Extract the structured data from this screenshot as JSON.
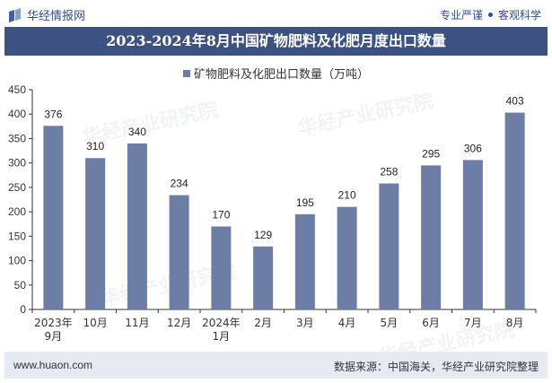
{
  "header": {
    "brand": "华经情报网",
    "tagline_left": "专业严谨",
    "tagline_right": "客观科学"
  },
  "title": "2023-2024年8月中国矿物肥料及化肥月度出口数量",
  "footer": {
    "url": "www.huaon.com",
    "source": "数据来源：中国海关，华经产业研究院整理"
  },
  "watermark": "华经产业研究院",
  "colors": {
    "bar": "#6c7ea6",
    "title_bg": "#3b5282",
    "footer_bg": "#e6ebf3"
  },
  "chart_data": {
    "type": "bar",
    "categories": [
      [
        "2023年",
        "9月"
      ],
      [
        "10月"
      ],
      [
        "11月"
      ],
      [
        "12月"
      ],
      [
        "2024年",
        "1月"
      ],
      [
        "2月"
      ],
      [
        "3月"
      ],
      [
        "4月"
      ],
      [
        "5月"
      ],
      [
        "6月"
      ],
      [
        "7月"
      ],
      [
        "8月"
      ]
    ],
    "series": [
      {
        "name": "矿物肥料及化肥出口数量（万吨）",
        "values": [
          376,
          310,
          340,
          234,
          170,
          129,
          195,
          210,
          258,
          295,
          306,
          403
        ]
      }
    ],
    "ylim": [
      0,
      450
    ],
    "yticks": [
      0,
      50,
      100,
      150,
      200,
      250,
      300,
      350,
      400,
      450
    ],
    "legend": "top-center",
    "grid": false
  }
}
